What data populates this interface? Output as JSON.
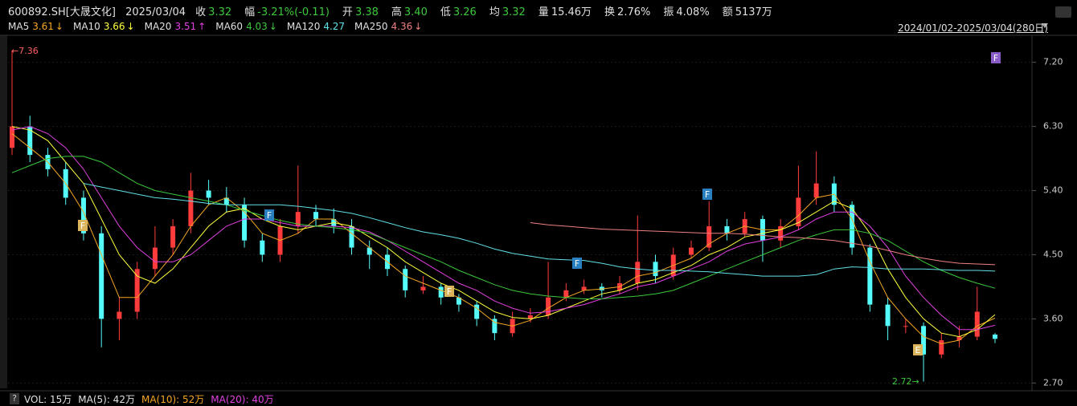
{
  "header": {
    "symbol": "600892.SH[大晟文化]",
    "date": "2025/03/04",
    "fields": [
      {
        "label": "收",
        "value": "3.32",
        "color": "#3cc83c"
      },
      {
        "label": "幅",
        "value": "-3.21%(-0.11)",
        "color": "#3cc83c"
      },
      {
        "label": "开",
        "value": "3.38",
        "color": "#3cc83c"
      },
      {
        "label": "高",
        "value": "3.40",
        "color": "#3cc83c"
      },
      {
        "label": "低",
        "value": "3.26",
        "color": "#3cc83c"
      },
      {
        "label": "均",
        "value": "3.32",
        "color": "#3cc83c"
      },
      {
        "label": "量",
        "value": "15.46万",
        "color": "#e0e0e0"
      },
      {
        "label": "换",
        "value": "2.76%",
        "color": "#e0e0e0"
      },
      {
        "label": "振",
        "value": "4.08%",
        "color": "#e0e0e0"
      },
      {
        "label": "额",
        "value": "5137万",
        "color": "#e0e0e0"
      }
    ],
    "range": "2024/01/02-2025/03/04(280日)"
  },
  "chart_data": {
    "type": "candlestick",
    "open": [
      6.0,
      6.3,
      5.9,
      5.7,
      5.3,
      4.8,
      3.6,
      3.7,
      4.3,
      4.6,
      4.9,
      5.4,
      5.3,
      5.2,
      4.7,
      4.5,
      4.9,
      5.1,
      5.0,
      4.9,
      4.6,
      4.5,
      4.3,
      4.0,
      4.05,
      3.9,
      3.8,
      3.6,
      3.4,
      3.6,
      3.65,
      3.9,
      4.0,
      4.05,
      4.0,
      4.1,
      4.4,
      4.2,
      4.5,
      4.6,
      4.9,
      4.8,
      5.0,
      4.7,
      4.9,
      5.3,
      5.5,
      5.2,
      4.6,
      3.8,
      3.5,
      3.5,
      3.1,
      3.3,
      3.35,
      3.38
    ],
    "high": [
      7.36,
      6.45,
      6.0,
      5.8,
      5.4,
      4.9,
      3.9,
      4.4,
      4.9,
      5.0,
      5.65,
      5.55,
      5.45,
      5.3,
      4.8,
      5.0,
      5.75,
      5.2,
      5.15,
      5.0,
      4.7,
      4.6,
      4.35,
      4.2,
      4.1,
      3.95,
      3.85,
      3.65,
      3.7,
      3.75,
      4.4,
      4.1,
      4.15,
      4.1,
      4.2,
      5.05,
      4.5,
      4.6,
      4.7,
      5.25,
      5.0,
      5.1,
      5.05,
      5.0,
      5.75,
      5.95,
      5.6,
      5.25,
      4.65,
      3.9,
      3.6,
      3.55,
      3.4,
      3.5,
      4.05,
      3.4
    ],
    "low": [
      5.9,
      5.8,
      5.6,
      5.2,
      4.7,
      3.2,
      3.3,
      3.6,
      4.2,
      4.5,
      4.8,
      5.2,
      5.1,
      4.6,
      4.4,
      4.4,
      4.8,
      4.9,
      4.8,
      4.5,
      4.3,
      4.2,
      3.9,
      3.95,
      3.8,
      3.7,
      3.5,
      3.3,
      3.35,
      3.55,
      3.6,
      3.85,
      3.95,
      3.9,
      3.95,
      4.0,
      4.1,
      4.15,
      4.45,
      4.55,
      4.7,
      4.75,
      4.4,
      4.6,
      4.85,
      5.2,
      5.1,
      4.5,
      3.7,
      3.3,
      3.4,
      2.72,
      3.05,
      3.2,
      3.3,
      3.26
    ],
    "close": [
      6.3,
      5.9,
      5.7,
      5.3,
      4.8,
      3.6,
      3.7,
      4.3,
      4.6,
      4.9,
      5.4,
      5.3,
      5.2,
      4.7,
      4.5,
      4.9,
      5.1,
      5.0,
      4.9,
      4.6,
      4.5,
      4.3,
      4.0,
      4.05,
      3.9,
      3.8,
      3.6,
      3.4,
      3.6,
      3.65,
      3.9,
      4.0,
      4.05,
      4.0,
      4.1,
      4.4,
      4.2,
      4.5,
      4.6,
      4.9,
      4.8,
      5.0,
      4.7,
      4.9,
      5.3,
      5.5,
      5.2,
      4.6,
      3.8,
      3.5,
      3.5,
      3.1,
      3.3,
      3.35,
      3.7,
      3.32
    ],
    "up_color": "#ff3c3c",
    "down_color": "#54fcfc",
    "ylim": [
      2.58,
      7.59
    ],
    "yticks": [
      {
        "value": 7.2,
        "label": "7.20"
      },
      {
        "value": 6.3,
        "label": "6.30"
      },
      {
        "value": 5.4,
        "label": "5.40"
      },
      {
        "value": 4.5,
        "label": "4.50"
      },
      {
        "value": 3.6,
        "label": "3.60"
      },
      {
        "value": 2.7,
        "label": "2.70"
      }
    ],
    "grid": true,
    "series": [
      {
        "name": "MA5",
        "color": "#f5a623",
        "last": 3.61,
        "trend": "↓",
        "values": [
          6.2,
          6.0,
          5.8,
          5.5,
          5.1,
          4.5,
          3.9,
          3.9,
          4.2,
          4.5,
          4.9,
          5.2,
          5.3,
          5.1,
          4.8,
          4.7,
          4.8,
          5.0,
          5.0,
          4.8,
          4.6,
          4.4,
          4.2,
          4.1,
          4.0,
          3.9,
          3.75,
          3.55,
          3.5,
          3.58,
          3.75,
          3.9,
          4.0,
          4.02,
          4.05,
          4.2,
          4.25,
          4.35,
          4.45,
          4.65,
          4.8,
          4.9,
          4.85,
          4.85,
          5.05,
          5.3,
          5.35,
          5.0,
          4.4,
          3.9,
          3.6,
          3.35,
          3.25,
          3.3,
          3.5,
          3.61
        ]
      },
      {
        "name": "MA10",
        "color": "#ffff3c",
        "last": 3.66,
        "trend": "↓",
        "values": [
          6.3,
          6.25,
          6.1,
          5.8,
          5.5,
          5.0,
          4.5,
          4.2,
          4.1,
          4.3,
          4.6,
          4.9,
          5.1,
          5.15,
          5.0,
          4.9,
          4.85,
          4.9,
          4.95,
          4.9,
          4.75,
          4.6,
          4.4,
          4.25,
          4.1,
          4.0,
          3.85,
          3.7,
          3.62,
          3.6,
          3.65,
          3.75,
          3.85,
          3.95,
          4.0,
          4.1,
          4.15,
          4.25,
          4.35,
          4.5,
          4.6,
          4.75,
          4.8,
          4.85,
          4.95,
          5.1,
          5.25,
          5.15,
          4.8,
          4.3,
          3.9,
          3.6,
          3.4,
          3.35,
          3.45,
          3.66
        ]
      },
      {
        "name": "MA20",
        "color": "#e040e0",
        "last": 3.51,
        "trend": "↑",
        "values": [
          6.25,
          6.3,
          6.2,
          6.0,
          5.7,
          5.3,
          4.9,
          4.6,
          4.4,
          4.4,
          4.5,
          4.7,
          4.9,
          5.0,
          5.0,
          4.95,
          4.9,
          4.9,
          4.9,
          4.88,
          4.82,
          4.7,
          4.55,
          4.4,
          4.25,
          4.1,
          4.0,
          3.85,
          3.75,
          3.68,
          3.7,
          3.75,
          3.8,
          3.88,
          3.95,
          4.05,
          4.1,
          4.2,
          4.3,
          4.4,
          4.55,
          4.65,
          4.7,
          4.75,
          4.85,
          5.0,
          5.1,
          5.1,
          4.9,
          4.6,
          4.2,
          3.9,
          3.65,
          3.45,
          3.45,
          3.51
        ]
      },
      {
        "name": "MA60",
        "color": "#3cc83c",
        "last": 4.03,
        "trend": "↓",
        "values": [
          5.65,
          5.75,
          5.85,
          5.88,
          5.88,
          5.8,
          5.65,
          5.5,
          5.4,
          5.35,
          5.3,
          5.25,
          5.2,
          5.12,
          5.05,
          4.98,
          4.93,
          4.9,
          4.88,
          4.85,
          4.8,
          4.7,
          4.6,
          4.5,
          4.4,
          4.28,
          4.18,
          4.08,
          4.0,
          3.95,
          3.92,
          3.9,
          3.88,
          3.88,
          3.9,
          3.92,
          3.95,
          4.0,
          4.1,
          4.2,
          4.3,
          4.4,
          4.5,
          4.6,
          4.7,
          4.78,
          4.85,
          4.85,
          4.8,
          4.7,
          4.55,
          4.4,
          4.28,
          4.18,
          4.1,
          4.03
        ]
      },
      {
        "name": "MA120",
        "color": "#60e0e8",
        "last": 4.27,
        "trend": "",
        "values": [
          null,
          null,
          null,
          null,
          5.5,
          5.45,
          5.4,
          5.35,
          5.3,
          5.28,
          5.25,
          5.22,
          5.2,
          5.2,
          5.2,
          5.2,
          5.18,
          5.15,
          5.12,
          5.08,
          5.02,
          4.95,
          4.88,
          4.82,
          4.78,
          4.73,
          4.66,
          4.58,
          4.52,
          4.48,
          4.44,
          4.43,
          4.42,
          4.38,
          4.33,
          4.3,
          4.28,
          4.28,
          4.27,
          4.26,
          4.24,
          4.22,
          4.2,
          4.2,
          4.2,
          4.22,
          4.3,
          4.33,
          4.32,
          4.3,
          4.3,
          4.3,
          4.29,
          4.28,
          4.28,
          4.27
        ]
      },
      {
        "name": "MA250",
        "color": "#f08080",
        "last": 4.36,
        "trend": "↓",
        "values": [
          null,
          null,
          null,
          null,
          null,
          null,
          null,
          null,
          null,
          null,
          null,
          null,
          null,
          null,
          null,
          null,
          null,
          null,
          null,
          null,
          null,
          null,
          null,
          null,
          null,
          null,
          null,
          null,
          null,
          4.95,
          4.92,
          4.9,
          4.88,
          4.86,
          4.85,
          4.84,
          4.83,
          4.82,
          4.81,
          4.8,
          4.8,
          4.79,
          4.77,
          4.75,
          4.74,
          4.72,
          4.7,
          4.66,
          4.62,
          4.56,
          4.5,
          4.45,
          4.41,
          4.38,
          4.37,
          4.36
        ]
      }
    ],
    "annotations": [
      {
        "text": "←7.36"
      },
      {
        "text": "2.72→"
      }
    ],
    "markers": [
      {
        "text": "F",
        "color": "#d9b45a"
      },
      {
        "text": "F",
        "color": "#2a7fc0"
      },
      {
        "text": "F",
        "color": "#d9b45a"
      },
      {
        "text": "F",
        "color": "#2a7fc0"
      },
      {
        "text": "F",
        "color": "#2a7fc0"
      },
      {
        "text": "E",
        "color": "#d9b45a"
      },
      {
        "text": "F",
        "color": "#8a5cc8"
      }
    ]
  },
  "volume": {
    "items": [
      {
        "text": "VOL: 15万",
        "color": "#e0e0e0"
      },
      {
        "text": "MA(5): 42万",
        "color": "#e0e0e0"
      },
      {
        "text": "MA(10): 52万",
        "color": "#f5a623"
      },
      {
        "text": "MA(20): 40万",
        "color": "#e040e0"
      }
    ]
  }
}
